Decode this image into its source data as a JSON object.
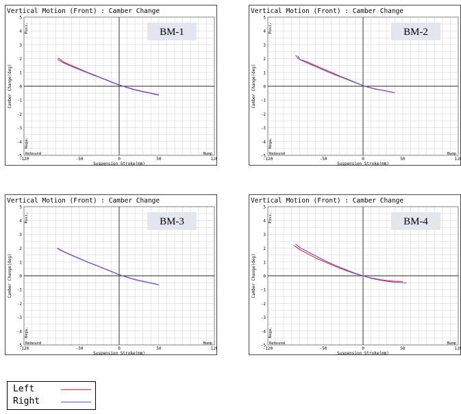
{
  "chart_data": [
    {
      "type": "line",
      "title": "Vertical Motion (Front) : Camber Change",
      "badge": "BM-1",
      "xlabel": "Suspension Stroke(mm)",
      "ylabel": "Camber Change(deg)",
      "xlim": [
        -120,
        120
      ],
      "ylim": [
        -5,
        5
      ],
      "x_ticks": [
        "-120",
        "-50",
        "0",
        "50",
        "120"
      ],
      "y_ticks": [
        "5",
        "4",
        "3",
        "2",
        "1",
        "0",
        "-1",
        "-2",
        "-3",
        "-4",
        "-5"
      ],
      "annotations": {
        "posi": "Posi.",
        "nega": "Nega.",
        "rebound": "Rebound",
        "bump": "Bump"
      },
      "grid": true,
      "series": [
        {
          "name": "Left",
          "color": "#e8202a",
          "x": [
            -77,
            -70,
            -60,
            -50,
            -40,
            -30,
            -20,
            -10,
            0,
            10,
            20,
            30,
            40,
            50
          ],
          "y": [
            2.05,
            1.75,
            1.5,
            1.25,
            1.0,
            0.78,
            0.55,
            0.32,
            0.1,
            -0.08,
            -0.25,
            -0.38,
            -0.5,
            -0.62
          ]
        },
        {
          "name": "Right",
          "color": "#5a4ee0",
          "x": [
            -78,
            -70,
            -60,
            -50,
            -40,
            -30,
            -20,
            -10,
            0,
            10,
            20,
            30,
            40,
            50
          ],
          "y": [
            1.95,
            1.68,
            1.43,
            1.2,
            0.97,
            0.75,
            0.53,
            0.3,
            0.08,
            -0.1,
            -0.27,
            -0.4,
            -0.52,
            -0.65
          ]
        }
      ]
    },
    {
      "type": "line",
      "title": "Vertical Motion (Front) : Camber Change",
      "badge": "BM-2",
      "xlabel": "Suspension Stroke(mm)",
      "ylabel": "Camber Change(deg)",
      "xlim": [
        -120,
        120
      ],
      "ylim": [
        -5,
        5
      ],
      "x_ticks": [
        "-120",
        "-50",
        "0",
        "50",
        "120"
      ],
      "y_ticks": [
        "5",
        "4",
        "3",
        "2",
        "1",
        "0",
        "-1",
        "-2",
        "-3",
        "-4",
        "-5"
      ],
      "annotations": {
        "posi": "Posi.",
        "nega": "Nega.",
        "rebound": "Rebound",
        "bump": "Bump"
      },
      "grid": true,
      "series": [
        {
          "name": "Left",
          "color": "#e8202a",
          "x": [
            -82,
            -80,
            -70,
            -60,
            -50,
            -40,
            -30,
            -20,
            -10,
            0,
            10,
            20,
            30,
            40
          ],
          "y": [
            2.2,
            1.95,
            1.75,
            1.5,
            1.25,
            1.0,
            0.75,
            0.52,
            0.28,
            0.05,
            -0.12,
            -0.25,
            -0.35,
            -0.48
          ]
        },
        {
          "name": "Right",
          "color": "#5a4ee0",
          "x": [
            -85,
            -82,
            -75,
            -65,
            -55,
            -45,
            -35,
            -25,
            -15,
            -5,
            5,
            15,
            25,
            35
          ],
          "y": [
            2.25,
            2.0,
            1.8,
            1.55,
            1.3,
            1.05,
            0.82,
            0.6,
            0.37,
            0.15,
            -0.05,
            -0.2,
            -0.3,
            -0.42
          ]
        }
      ]
    },
    {
      "type": "line",
      "title": "Vertical Motion (Front) : Camber Change",
      "badge": "BM-3",
      "xlabel": "Suspension Stroke(mm)",
      "ylabel": "Camber Change(deg)",
      "xlim": [
        -120,
        120
      ],
      "ylim": [
        -5,
        5
      ],
      "x_ticks": [
        "-120",
        "-50",
        "0",
        "50",
        "120"
      ],
      "y_ticks": [
        "5",
        "4",
        "3",
        "2",
        "1",
        "0",
        "-1",
        "-2",
        "-3",
        "-4",
        "-5"
      ],
      "annotations": {
        "posi": "Posi.",
        "nega": "Nega.",
        "rebound": "Rebound",
        "bump": "Bump"
      },
      "grid": true,
      "series": [
        {
          "name": "Left",
          "color": "#e8202a",
          "x": [
            -78,
            -70,
            -60,
            -50,
            -40,
            -30,
            -20,
            -10,
            0,
            10,
            20,
            30,
            40,
            50
          ],
          "y": [
            2.0,
            1.75,
            1.5,
            1.25,
            1.0,
            0.78,
            0.55,
            0.32,
            0.08,
            -0.1,
            -0.27,
            -0.4,
            -0.52,
            -0.65
          ]
        },
        {
          "name": "Right",
          "color": "#5a4ee0",
          "x": [
            -78,
            -70,
            -60,
            -50,
            -40,
            -30,
            -20,
            -10,
            0,
            10,
            20,
            30,
            40,
            50
          ],
          "y": [
            1.98,
            1.73,
            1.48,
            1.23,
            0.99,
            0.77,
            0.54,
            0.31,
            0.07,
            -0.11,
            -0.28,
            -0.41,
            -0.53,
            -0.66
          ]
        }
      ]
    },
    {
      "type": "line",
      "title": "Vertical Motion (Front) : Camber Change",
      "badge": "BM-4",
      "xlabel": "Suspension Stroke(mm)",
      "ylabel": "Camber Change(deg)",
      "xlim": [
        -120,
        120
      ],
      "ylim": [
        -5,
        5
      ],
      "x_ticks": [
        "-120",
        "-50",
        "0",
        "50",
        "120"
      ],
      "y_ticks": [
        "5",
        "4",
        "3",
        "2",
        "1",
        "0",
        "-1",
        "-2",
        "-3",
        "-4",
        "-5"
      ],
      "annotations": {
        "posi": "Posi.",
        "nega": "Nega.",
        "rebound": "Rebound",
        "bump": "Bump"
      },
      "grid": true,
      "series": [
        {
          "name": "Left",
          "color": "#e8202a",
          "x": [
            -87,
            -80,
            -70,
            -60,
            -50,
            -40,
            -30,
            -20,
            -10,
            0,
            10,
            20,
            30,
            40,
            50
          ],
          "y": [
            2.2,
            1.9,
            1.6,
            1.3,
            1.05,
            0.8,
            0.57,
            0.35,
            0.15,
            0.0,
            -0.15,
            -0.27,
            -0.35,
            -0.4,
            -0.42
          ]
        },
        {
          "name": "Right",
          "color": "#5a4ee0",
          "x": [
            -85,
            -80,
            -70,
            -60,
            -50,
            -40,
            -30,
            -20,
            -10,
            0,
            10,
            20,
            30,
            40,
            55
          ],
          "y": [
            2.3,
            2.05,
            1.75,
            1.45,
            1.15,
            0.88,
            0.63,
            0.4,
            0.18,
            0.0,
            -0.18,
            -0.3,
            -0.4,
            -0.47,
            -0.52
          ]
        }
      ]
    }
  ],
  "legend": [
    {
      "label": "Left",
      "color": "#e8202a"
    },
    {
      "label": "Right",
      "color": "#5a4ee0"
    }
  ]
}
